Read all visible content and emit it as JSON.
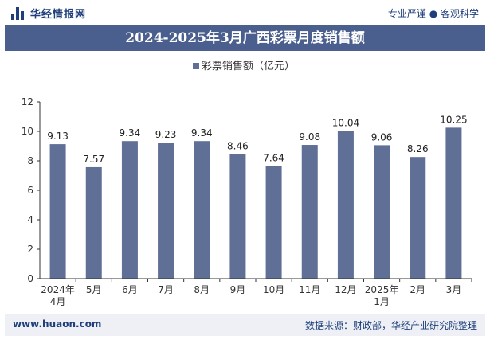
{
  "header": {
    "brand": "华经情报网",
    "tagline": "专业严谨 ● 客观科学",
    "title": "2024-2025年3月广西彩票月度销售额"
  },
  "footer": {
    "url": "www.huaon.com",
    "source": "数据来源：财政部，华经产业研究院整理"
  },
  "colors": {
    "bar": "#5f6f96",
    "title_bg": "#4a5f8e",
    "brand": "#1f3f7a"
  },
  "chart_data": {
    "type": "bar",
    "categories": [
      "2024年\n4月",
      "5月",
      "6月",
      "7月",
      "8月",
      "9月",
      "10月",
      "11月",
      "12月",
      "2025年\n1月",
      "2月",
      "3月"
    ],
    "series": [
      {
        "name": "彩票销售额（亿元）",
        "values": [
          9.13,
          7.57,
          9.34,
          9.23,
          9.34,
          8.46,
          7.64,
          9.08,
          10.04,
          9.06,
          8.26,
          10.25
        ]
      }
    ],
    "value_labels": [
      "9.13",
      "7.57",
      "9.34",
      "9.23",
      "9.34",
      "8.46",
      "7.64",
      "9.08",
      "10.04",
      "9.06",
      "8.26",
      "10.25"
    ],
    "y_ticks": [
      "0",
      "2",
      "4",
      "6",
      "8",
      "10",
      "12"
    ],
    "ylim": [
      0,
      12
    ],
    "legend": "top-center",
    "grid": false
  }
}
